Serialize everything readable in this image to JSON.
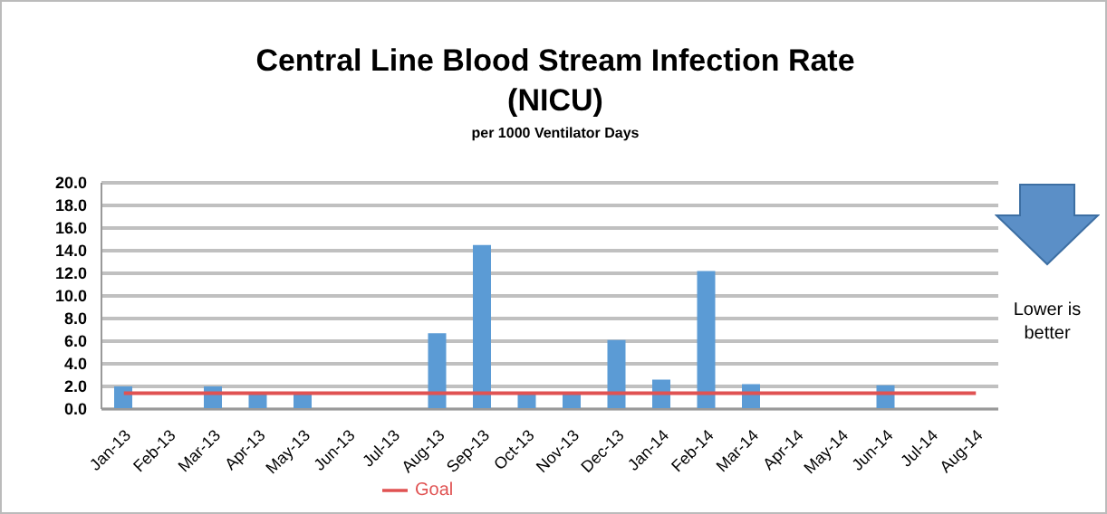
{
  "chart_data": {
    "type": "bar",
    "title": "Central Line Blood Stream Infection Rate (NICU)",
    "subtitle": "per 1000 Ventilator Days",
    "categories": [
      "Jan-13",
      "Feb-13",
      "Mar-13",
      "Apr-13",
      "May-13",
      "Jun-13",
      "Jul-13",
      "Aug-13",
      "Sep-13",
      "Oct-13",
      "Nov-13",
      "Dec-13",
      "Jan-14",
      "Feb-14",
      "Mar-14",
      "Apr-14",
      "May-14",
      "Jun-14",
      "Jul-14",
      "Aug-14"
    ],
    "series": [
      {
        "color": "#5b9bd5",
        "values": [
          2.0,
          0,
          2.0,
          1.4,
          1.4,
          0,
          0,
          6.7,
          14.5,
          1.4,
          1.4,
          6.1,
          2.6,
          12.2,
          2.2,
          0,
          0,
          2.1,
          0,
          0
        ]
      },
      {
        "type": "line",
        "name": "Goal",
        "color": "#e05252",
        "values": [
          1.4,
          1.4,
          1.4,
          1.4,
          1.4,
          1.4,
          1.4,
          1.4,
          1.4,
          1.4,
          1.4,
          1.4,
          1.4,
          1.4,
          1.4,
          1.4,
          1.4,
          1.4,
          1.4,
          1.4
        ]
      }
    ],
    "ylim": [
      0,
      20
    ],
    "yticks": [
      {
        "value": 0,
        "label": "0.0"
      },
      {
        "value": 2,
        "label": "2.0"
      },
      {
        "value": 4,
        "label": "4.0"
      },
      {
        "value": 6,
        "label": "6.0"
      },
      {
        "value": 8,
        "label": "8.0"
      },
      {
        "value": 10,
        "label": "10.0"
      },
      {
        "value": 12,
        "label": "12.0"
      },
      {
        "value": 14,
        "label": "14.0"
      },
      {
        "value": 16,
        "label": "16.0"
      },
      {
        "value": 18,
        "label": "18.0"
      },
      {
        "value": 20,
        "label": "20.0"
      }
    ],
    "grid": "y",
    "legend": "bottom",
    "marker": "none",
    "annotations": [
      "Lower is better"
    ]
  }
}
